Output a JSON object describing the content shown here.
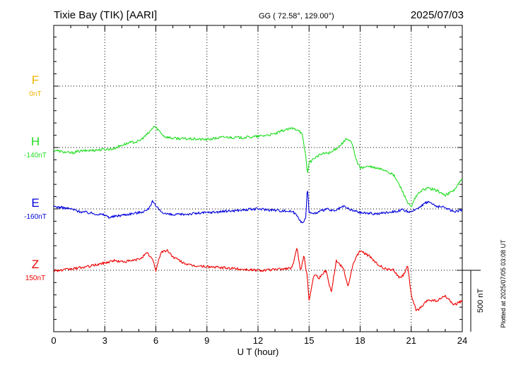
{
  "chart_data": {
    "type": "line",
    "title": "Tixie Bay (TIK)  [AARI]",
    "coords": "GG ( 72.58°, 129.00°)",
    "date": "2025/07/03",
    "xlabel": "U T (hour)",
    "x_ticks": [
      "0",
      "3",
      "6",
      "9",
      "12",
      "15",
      "18",
      "21",
      "24"
    ],
    "xlim": [
      0,
      24
    ],
    "grid": true,
    "scale_label": "500 nT",
    "footer": "Plotted at 2025/07/05 03:08 UT",
    "series": [
      {
        "name": "F",
        "baseline": "0nT",
        "color": "#f0b400",
        "values": []
      },
      {
        "name": "H",
        "baseline": "-140nT",
        "color": "#22dd22",
        "x": [
          0,
          0.5,
          1,
          1.5,
          2,
          2.5,
          3,
          3.5,
          4,
          4.5,
          5,
          5.3,
          5.6,
          5.9,
          6.1,
          6.5,
          7,
          8,
          9,
          10,
          11,
          12,
          13,
          13.5,
          14,
          14.4,
          14.6,
          14.8,
          14.9,
          15,
          15.3,
          15.8,
          16.3,
          16.8,
          17.2,
          17.5,
          17.8,
          18,
          18.5,
          19,
          19.5,
          20,
          20.4,
          20.8,
          21,
          21.2,
          21.5,
          21.8,
          22,
          22.5,
          23,
          23.5,
          24
        ],
        "values": [
          -20,
          -35,
          -45,
          -30,
          -25,
          -20,
          -15,
          -10,
          20,
          40,
          50,
          85,
          120,
          175,
          150,
          90,
          75,
          70,
          65,
          85,
          80,
          90,
          110,
          140,
          155,
          145,
          100,
          -60,
          -210,
          -130,
          -85,
          -50,
          -40,
          15,
          70,
          40,
          -110,
          -165,
          -155,
          -170,
          -185,
          -230,
          -330,
          -450,
          -490,
          -420,
          -360,
          -340,
          -330,
          -350,
          -390,
          -350,
          -255
        ]
      },
      {
        "name": "E",
        "baseline": "-160nT",
        "color": "#0000dd",
        "x": [
          0,
          0.5,
          1,
          1.5,
          2,
          2.5,
          3,
          3.3,
          3.6,
          4,
          5,
          5.5,
          5.8,
          6,
          6.3,
          6.6,
          7,
          8,
          9,
          10,
          11,
          12,
          13,
          14,
          14.3,
          14.6,
          14.8,
          14.9,
          15,
          15.2,
          15.5,
          16,
          16.5,
          17,
          17.5,
          18,
          19,
          20,
          20.5,
          21,
          21.5,
          22,
          22.5,
          23,
          23.5,
          24
        ],
        "values": [
          20,
          10,
          0,
          -20,
          -30,
          -40,
          -50,
          -70,
          -60,
          -50,
          -30,
          -10,
          60,
          20,
          -20,
          -40,
          -50,
          -40,
          -30,
          -20,
          -10,
          0,
          -10,
          -20,
          -50,
          -120,
          -80,
          180,
          -20,
          -40,
          -30,
          0,
          -20,
          20,
          -10,
          -30,
          -40,
          -20,
          -10,
          -30,
          20,
          60,
          20,
          10,
          -20,
          -10
        ]
      },
      {
        "name": "Z",
        "baseline": "150nT",
        "color": "#ee0000",
        "x": [
          0,
          0.5,
          1,
          1.5,
          2,
          2.5,
          3,
          3.5,
          4,
          4.5,
          5,
          5.5,
          5.8,
          6,
          6.3,
          6.7,
          7,
          7.5,
          8,
          9,
          10,
          11,
          12,
          13,
          14,
          14.3,
          14.5,
          14.7,
          14.9,
          15,
          15.3,
          15.6,
          16,
          16.3,
          16.6,
          17,
          17.3,
          17.6,
          18,
          18.5,
          19,
          19.5,
          20,
          20.3,
          20.6,
          20.8,
          21,
          21.3,
          21.6,
          22,
          22.5,
          23,
          23.5,
          24
        ],
        "values": [
          0,
          0,
          10,
          20,
          30,
          45,
          60,
          80,
          70,
          75,
          90,
          140,
          90,
          0,
          150,
          160,
          110,
          70,
          40,
          30,
          20,
          10,
          0,
          5,
          20,
          180,
          0,
          120,
          -60,
          -240,
          -30,
          -60,
          0,
          -180,
          80,
          20,
          -130,
          60,
          160,
          120,
          50,
          10,
          0,
          -60,
          -30,
          40,
          -200,
          -330,
          -300,
          -240,
          -250,
          -210,
          -280,
          -250
        ]
      }
    ]
  }
}
